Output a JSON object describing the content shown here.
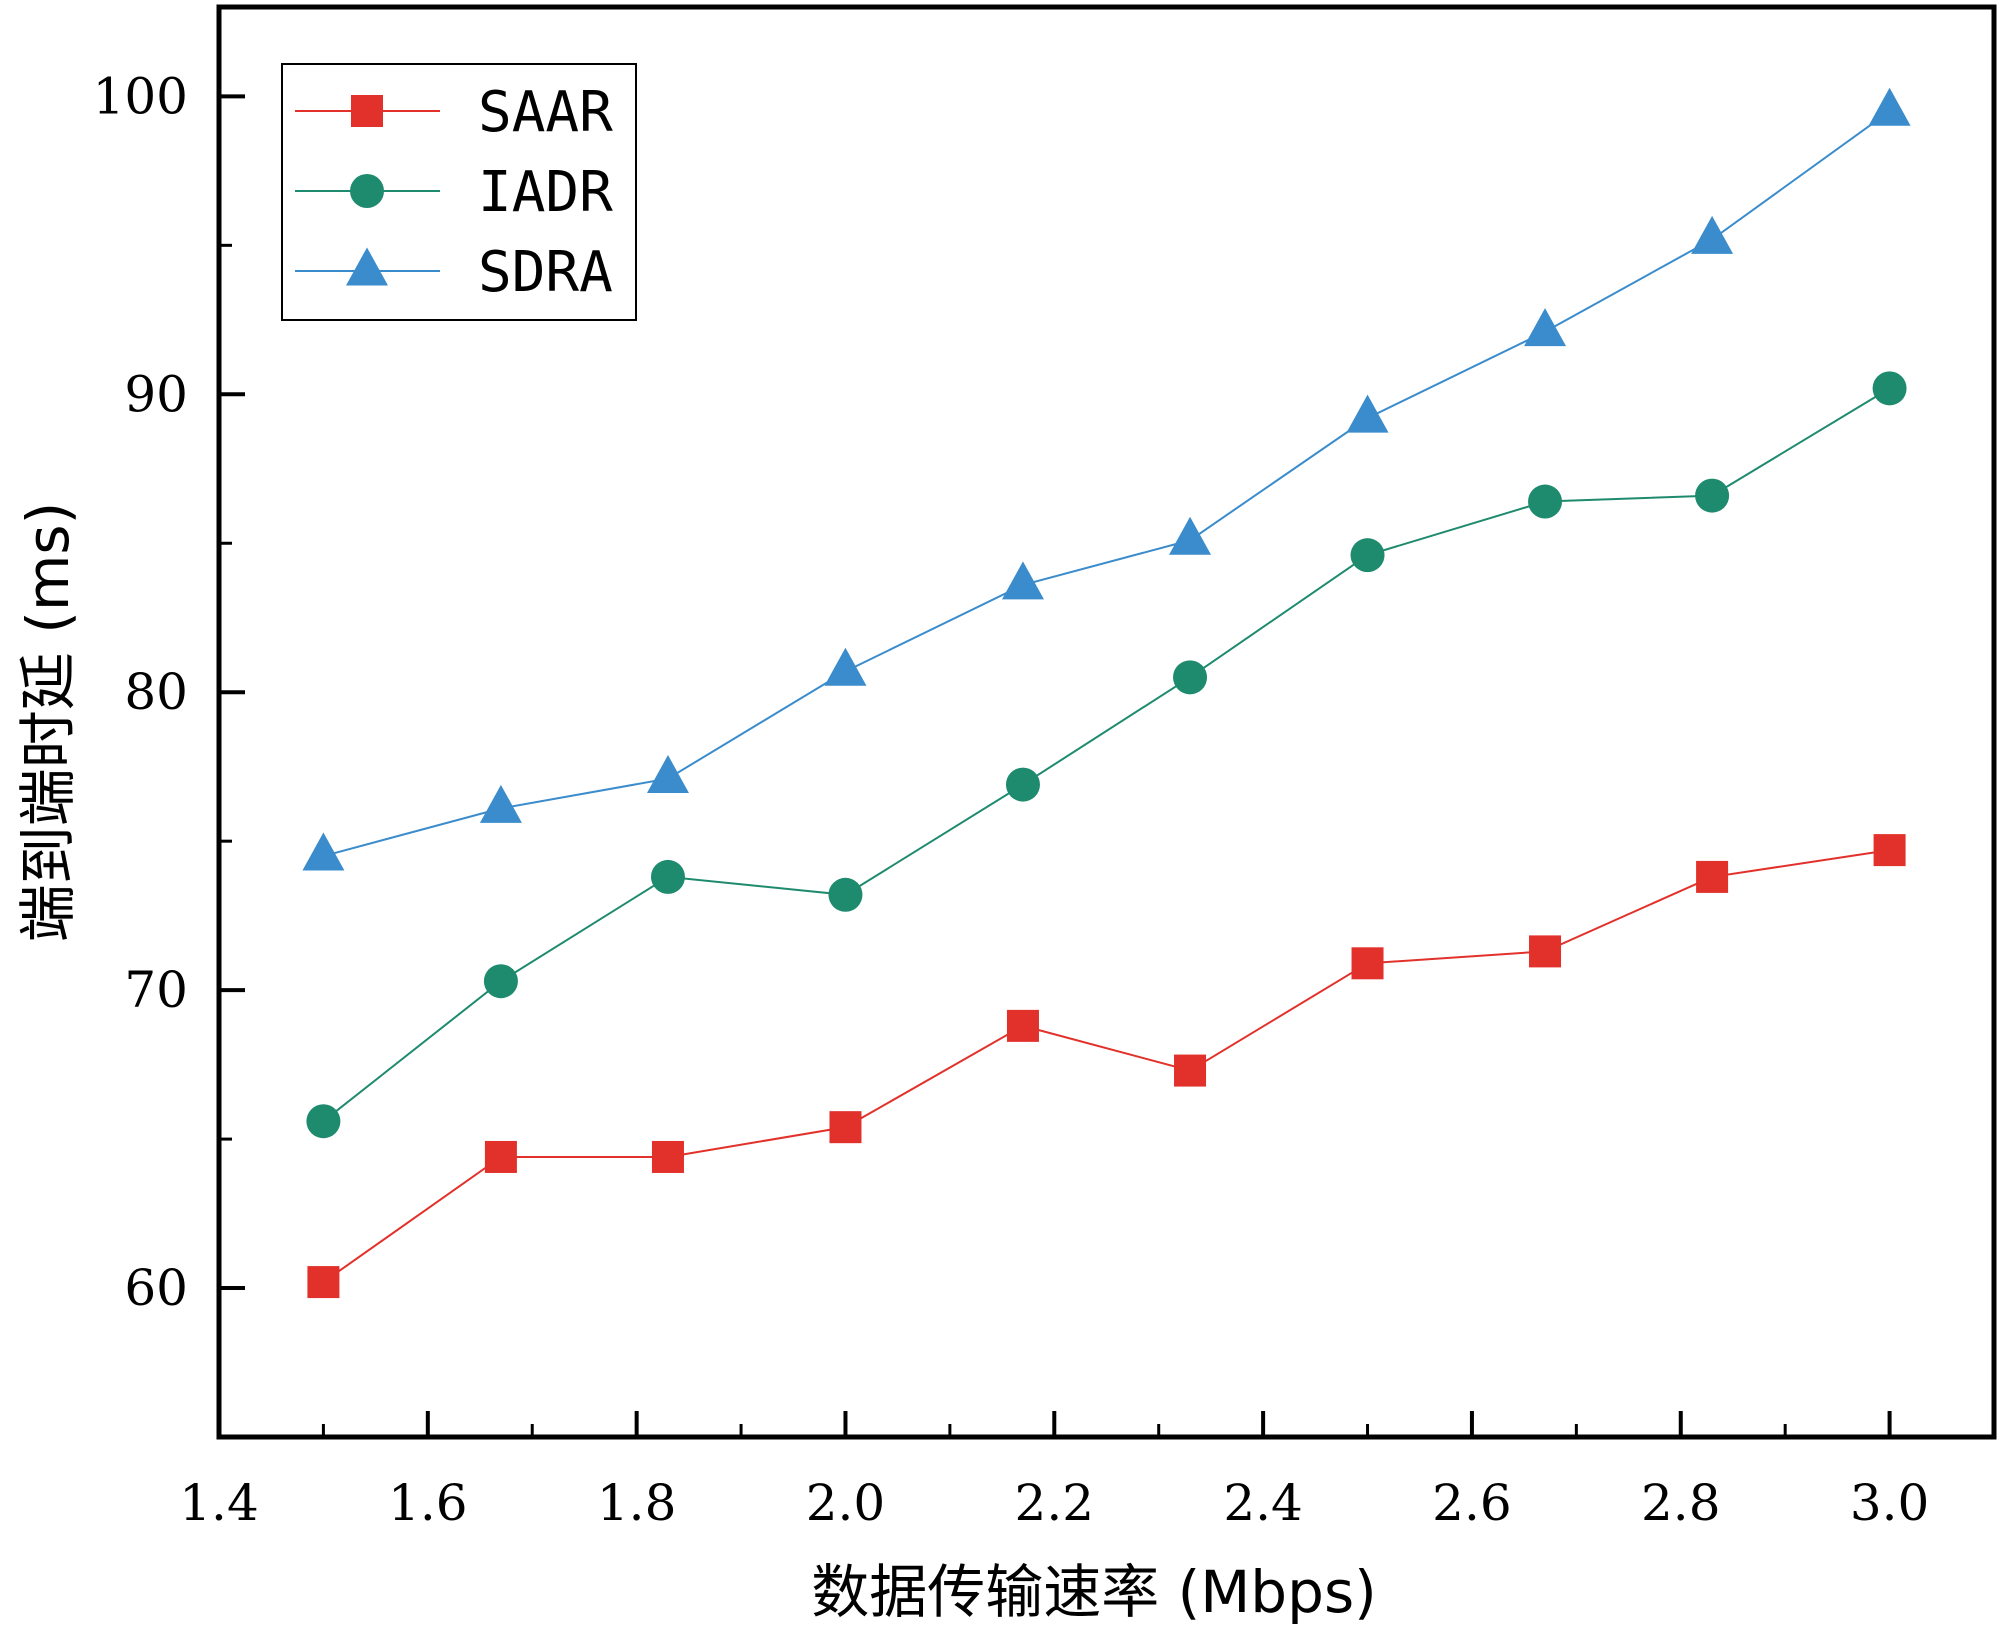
{
  "chart_data": {
    "type": "line",
    "xlabel": "数据传输速率 (Mbps)",
    "ylabel": "端到端时延 (ms)",
    "xlim": [
      1.4,
      3.1
    ],
    "ylim": [
      55,
      103
    ],
    "x_ticks": [
      "1.4",
      "1.6",
      "1.8",
      "2.0",
      "2.2",
      "2.4",
      "2.6",
      "2.8",
      "3.0"
    ],
    "y_ticks": [
      "60",
      "70",
      "80",
      "90",
      "100"
    ],
    "x": [
      1.5,
      1.67,
      1.83,
      2.0,
      2.17,
      2.33,
      2.5,
      2.67,
      2.83,
      3.0
    ],
    "grid": false,
    "legend_position": "top-left",
    "series": [
      {
        "name": "SAAR",
        "marker": "square",
        "color": "#e2312a",
        "values": [
          60.2,
          64.4,
          64.4,
          65.4,
          68.8,
          67.3,
          70.9,
          71.3,
          73.8,
          74.7
        ]
      },
      {
        "name": "IADR",
        "marker": "circle",
        "color": "#1e8a6e",
        "values": [
          65.6,
          70.3,
          73.8,
          73.2,
          76.9,
          80.5,
          84.6,
          86.4,
          86.6,
          90.2
        ]
      },
      {
        "name": "SDRA",
        "marker": "triangle",
        "color": "#3a8ccc",
        "values": [
          74.5,
          76.1,
          77.1,
          80.7,
          83.6,
          85.1,
          89.2,
          92.1,
          95.2,
          99.5
        ]
      }
    ]
  }
}
